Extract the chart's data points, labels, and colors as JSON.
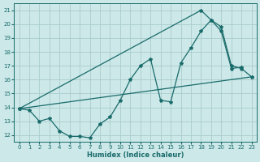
{
  "bg_color": "#cce8e8",
  "grid_color": "#aacccc",
  "line_color": "#1a6b6b",
  "xlabel": "Humidex (Indice chaleur)",
  "xlim": [
    -0.5,
    23.5
  ],
  "ylim": [
    11.5,
    21.5
  ],
  "yticks": [
    12,
    13,
    14,
    15,
    16,
    17,
    18,
    19,
    20,
    21
  ],
  "xticks": [
    0,
    1,
    2,
    3,
    4,
    5,
    6,
    7,
    8,
    9,
    10,
    11,
    12,
    13,
    14,
    15,
    16,
    17,
    18,
    19,
    20,
    21,
    22,
    23
  ],
  "line1_x": [
    0,
    1,
    2,
    3,
    4,
    5,
    6,
    7,
    8,
    9,
    10,
    11,
    12,
    13,
    14,
    15,
    16,
    17,
    18,
    19,
    20,
    21,
    22
  ],
  "line1_y": [
    13.9,
    13.8,
    13.0,
    13.2,
    12.3,
    11.9,
    11.9,
    11.8,
    12.8,
    13.3,
    14.5,
    16.0,
    17.0,
    17.5,
    14.5,
    14.4,
    17.2,
    18.3,
    19.5,
    20.3,
    19.5,
    16.8,
    16.9
  ],
  "line2_x": [
    0,
    18,
    19,
    20,
    21,
    22,
    23
  ],
  "line2_y": [
    13.9,
    21.0,
    20.3,
    19.8,
    17.0,
    16.8,
    16.2
  ],
  "line3_x": [
    0,
    23
  ],
  "line3_y": [
    13.9,
    16.2
  ],
  "markersize": 3,
  "linewidth": 0.9
}
